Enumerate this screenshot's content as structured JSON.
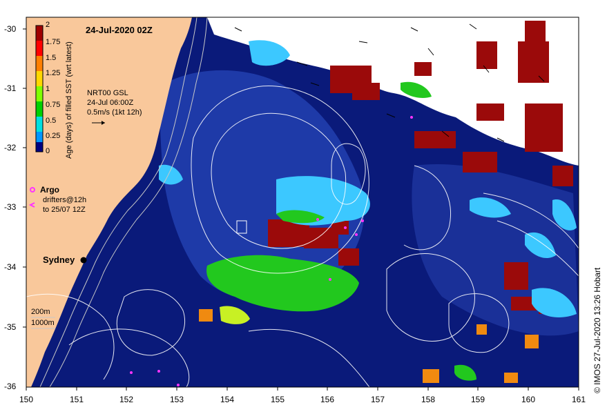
{
  "map": {
    "title": "24-Jul-2020 02Z",
    "product": "NRT00 GSL",
    "current_time": "24-Jul 06:00Z",
    "vector_scale": "0.5m/s (1kt 12h)",
    "city": "Sydney",
    "argo_label": "Argo",
    "drifters_line1": "drifters@12h",
    "drifters_line2": "to 25/07 12Z",
    "contour_label_1": "200m",
    "contour_label_2": "1000m",
    "credit": "© IMOS 27-Jul-2020 13:26 Hobart",
    "x_axis_ticks": [
      "150",
      "151",
      "152",
      "153",
      "154",
      "155",
      "156",
      "157",
      "158",
      "159",
      "160",
      "161"
    ],
    "y_axis_ticks": [
      "-30",
      "-31",
      "-32",
      "-33",
      "-34",
      "-35",
      "-36"
    ],
    "colorbar": {
      "label": "Age (days) of filled SST (wrt latest)",
      "ticks": [
        "2",
        "1.75",
        "1.5",
        "1.25",
        "1",
        "0.75",
        "0.5",
        "0.25",
        "0"
      ],
      "colors": [
        "#a00000",
        "#ff0000",
        "#ff7f00",
        "#ffd700",
        "#ffff00",
        "#7fff00",
        "#00d000",
        "#00e0e0",
        "#0096ff",
        "#0000c0",
        "#000080"
      ]
    },
    "colors": {
      "land": "#f9c89b",
      "ocean_deep": "#0a1a7a",
      "ocean_mid": "#1e3aa8",
      "cyan": "#3cc8ff",
      "green": "#22c81e",
      "dark_red": "#9b0a0a",
      "cloud": "#ffffff",
      "argo": "#ff33ff"
    }
  }
}
